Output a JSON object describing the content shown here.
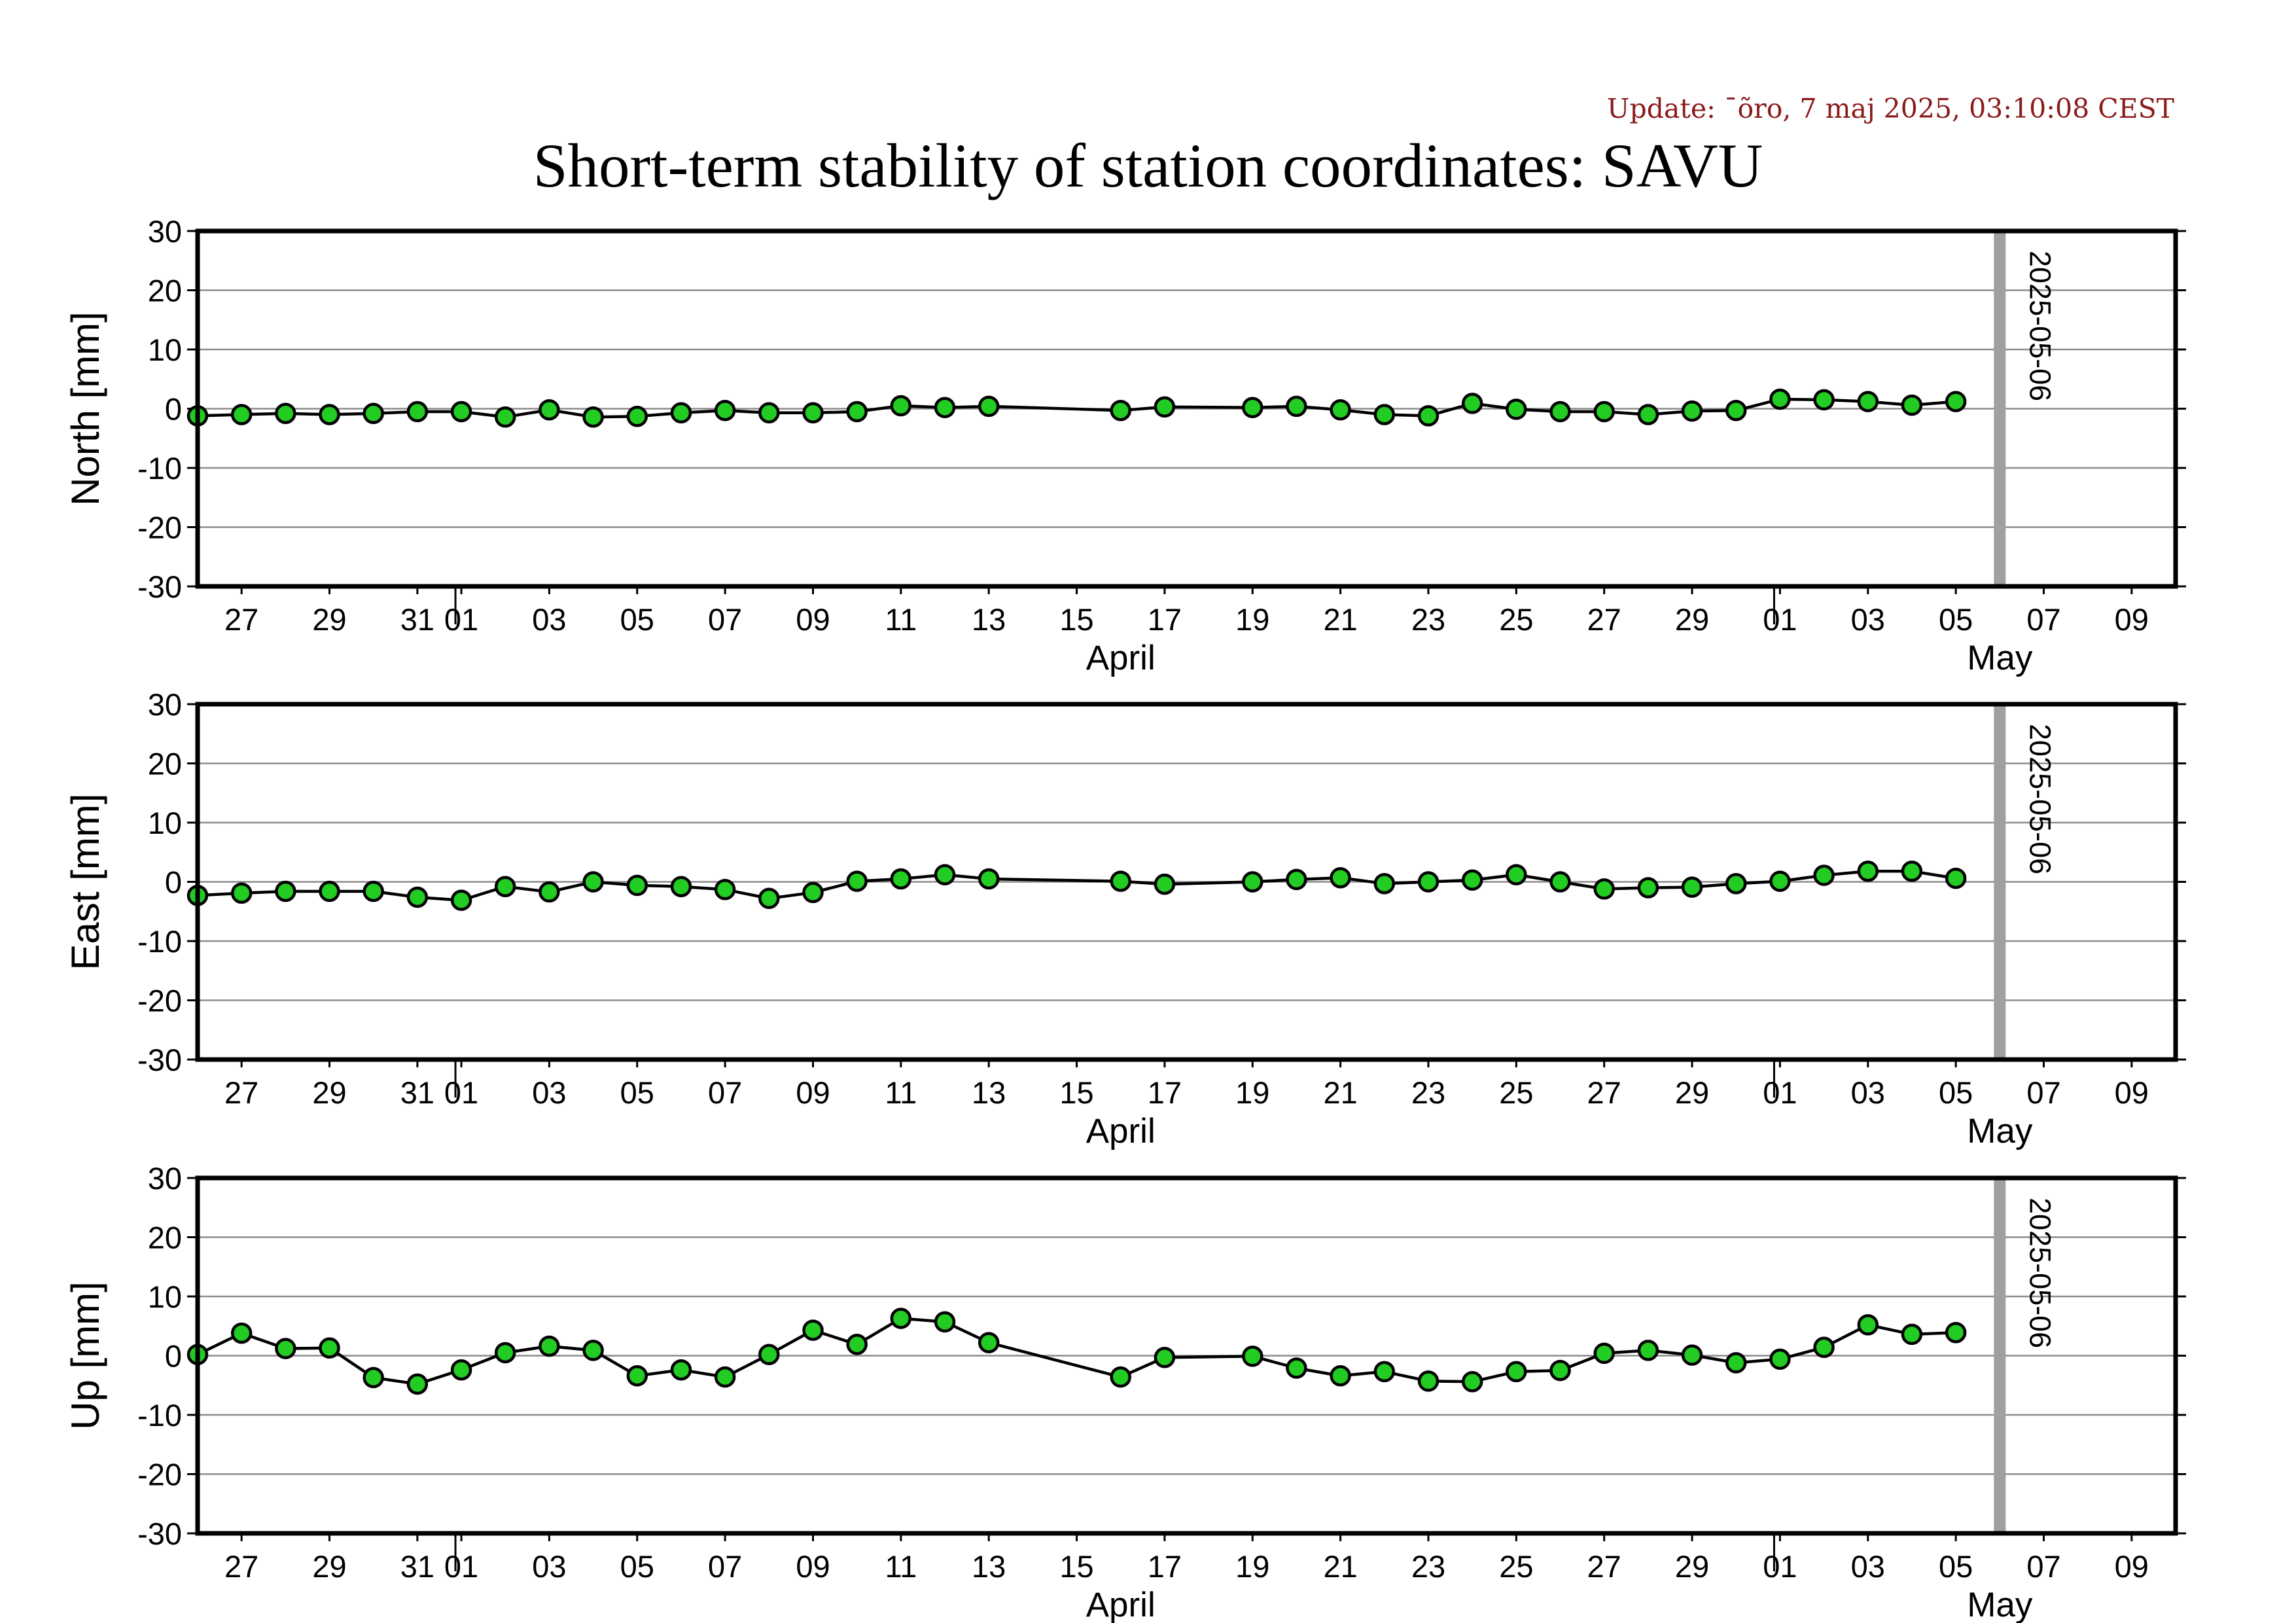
{
  "update_text": "Update: ¯õro, 7 maj 2025, 03:10:08 CEST",
  "chart_data": {
    "type": "line",
    "title": "Short-term stability of station coordinates: SAVU",
    "x": [
      "2025-03-26",
      "2025-03-27",
      "2025-03-28",
      "2025-03-29",
      "2025-03-30",
      "2025-03-31",
      "2025-04-01",
      "2025-04-02",
      "2025-04-03",
      "2025-04-04",
      "2025-04-05",
      "2025-04-06",
      "2025-04-07",
      "2025-04-08",
      "2025-04-09",
      "2025-04-10",
      "2025-04-11",
      "2025-04-12",
      "2025-04-13",
      "2025-04-16",
      "2025-04-17",
      "2025-04-19",
      "2025-04-20",
      "2025-04-21",
      "2025-04-22",
      "2025-04-23",
      "2025-04-24",
      "2025-04-25",
      "2025-04-26",
      "2025-04-27",
      "2025-04-28",
      "2025-04-29",
      "2025-04-30",
      "2025-05-01",
      "2025-05-02",
      "2025-05-03",
      "2025-05-04",
      "2025-05-05"
    ],
    "xlim": [
      "2025-03-26",
      "2025-05-10"
    ],
    "x_tick_labels": [
      "27",
      "29",
      "31",
      "01",
      "03",
      "05",
      "07",
      "09",
      "11",
      "13",
      "15",
      "17",
      "19",
      "21",
      "23",
      "25",
      "27",
      "29",
      "01",
      "03",
      "05",
      "07",
      "09"
    ],
    "month_labels": [
      "April",
      "May"
    ],
    "ylim": [
      -30,
      30
    ],
    "y_tick_labels": [
      "30",
      "20",
      "10",
      "0",
      "-10",
      "-20",
      "-30"
    ],
    "grid": true,
    "marker_fill": "#22cc22",
    "marker_edge": "#000000",
    "line_color": "#000000",
    "epoch_line": {
      "date": "2025-05-06",
      "label": "2025-05-06",
      "color": "#a0a0a0"
    },
    "panels": [
      {
        "name": "North",
        "ylabel": "North [mm]",
        "values": [
          -1.2,
          -1.0,
          -0.8,
          -1.0,
          -0.8,
          -0.5,
          -0.5,
          -1.4,
          -0.2,
          -1.4,
          -1.3,
          -0.7,
          -0.3,
          -0.7,
          -0.7,
          -0.5,
          0.5,
          0.2,
          0.4,
          -0.3,
          0.3,
          0.2,
          0.4,
          -0.2,
          -1.0,
          -1.2,
          0.9,
          -0.1,
          -0.5,
          -0.5,
          -1.0,
          -0.4,
          -0.3,
          1.6,
          1.5,
          1.2,
          0.6,
          1.2
        ]
      },
      {
        "name": "East",
        "ylabel": "East [mm]",
        "values": [
          -2.3,
          -1.9,
          -1.6,
          -1.6,
          -1.6,
          -2.6,
          -3.1,
          -0.8,
          -1.7,
          0.0,
          -0.6,
          -0.8,
          -1.3,
          -2.8,
          -1.8,
          0.1,
          0.5,
          1.2,
          0.5,
          0.1,
          -0.4,
          0.0,
          0.4,
          0.7,
          -0.3,
          0.0,
          0.3,
          1.2,
          0.0,
          -1.2,
          -1.0,
          -0.9,
          -0.3,
          0.1,
          1.1,
          1.8,
          1.8,
          0.6
        ]
      },
      {
        "name": "Up",
        "ylabel": "Up [mm]",
        "values": [
          0.2,
          3.8,
          1.2,
          1.3,
          -3.7,
          -4.8,
          -2.4,
          0.5,
          1.6,
          0.9,
          -3.4,
          -2.4,
          -3.6,
          0.2,
          4.3,
          1.9,
          6.3,
          5.7,
          2.2,
          -3.6,
          -0.3,
          -0.1,
          -2.1,
          -3.4,
          -2.7,
          -4.3,
          -4.4,
          -2.7,
          -2.5,
          0.4,
          0.9,
          0.1,
          -1.2,
          -0.6,
          1.4,
          5.2,
          3.6,
          3.9
        ]
      }
    ]
  }
}
